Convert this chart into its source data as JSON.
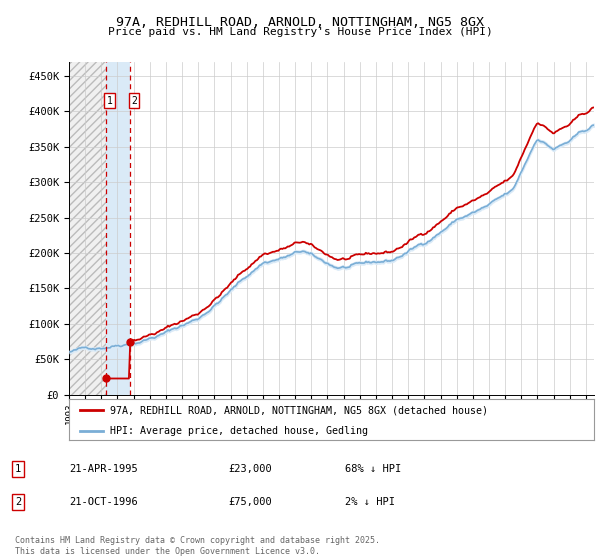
{
  "title_line1": "97A, REDHILL ROAD, ARNOLD, NOTTINGHAM, NG5 8GX",
  "title_line2": "Price paid vs. HM Land Registry's House Price Index (HPI)",
  "ylim": [
    0,
    470000
  ],
  "yticks": [
    0,
    50000,
    100000,
    150000,
    200000,
    250000,
    300000,
    350000,
    400000,
    450000
  ],
  "ytick_labels": [
    "£0",
    "£50K",
    "£100K",
    "£150K",
    "£200K",
    "£250K",
    "£300K",
    "£350K",
    "£400K",
    "£450K"
  ],
  "background_color": "#ffffff",
  "plot_bg_color": "#ffffff",
  "grid_color": "#cccccc",
  "purchase1_date": 1995.29,
  "purchase1_price": 23000,
  "purchase2_date": 1996.79,
  "purchase2_price": 75000,
  "hpi_color": "#7aaed6",
  "hpi_fill_color": "#daeaf7",
  "price_color": "#cc0000",
  "legend_line1": "97A, REDHILL ROAD, ARNOLD, NOTTINGHAM, NG5 8GX (detached house)",
  "legend_line2": "HPI: Average price, detached house, Gedling",
  "table_row1_date": "21-APR-1995",
  "table_row1_price": "£23,000",
  "table_row1_hpi": "68% ↓ HPI",
  "table_row2_date": "21-OCT-1996",
  "table_row2_price": "£75,000",
  "table_row2_hpi": "2% ↓ HPI",
  "footer": "Contains HM Land Registry data © Crown copyright and database right 2025.\nThis data is licensed under the Open Government Licence v3.0.",
  "xmin": 1993.0,
  "xmax": 2025.5
}
